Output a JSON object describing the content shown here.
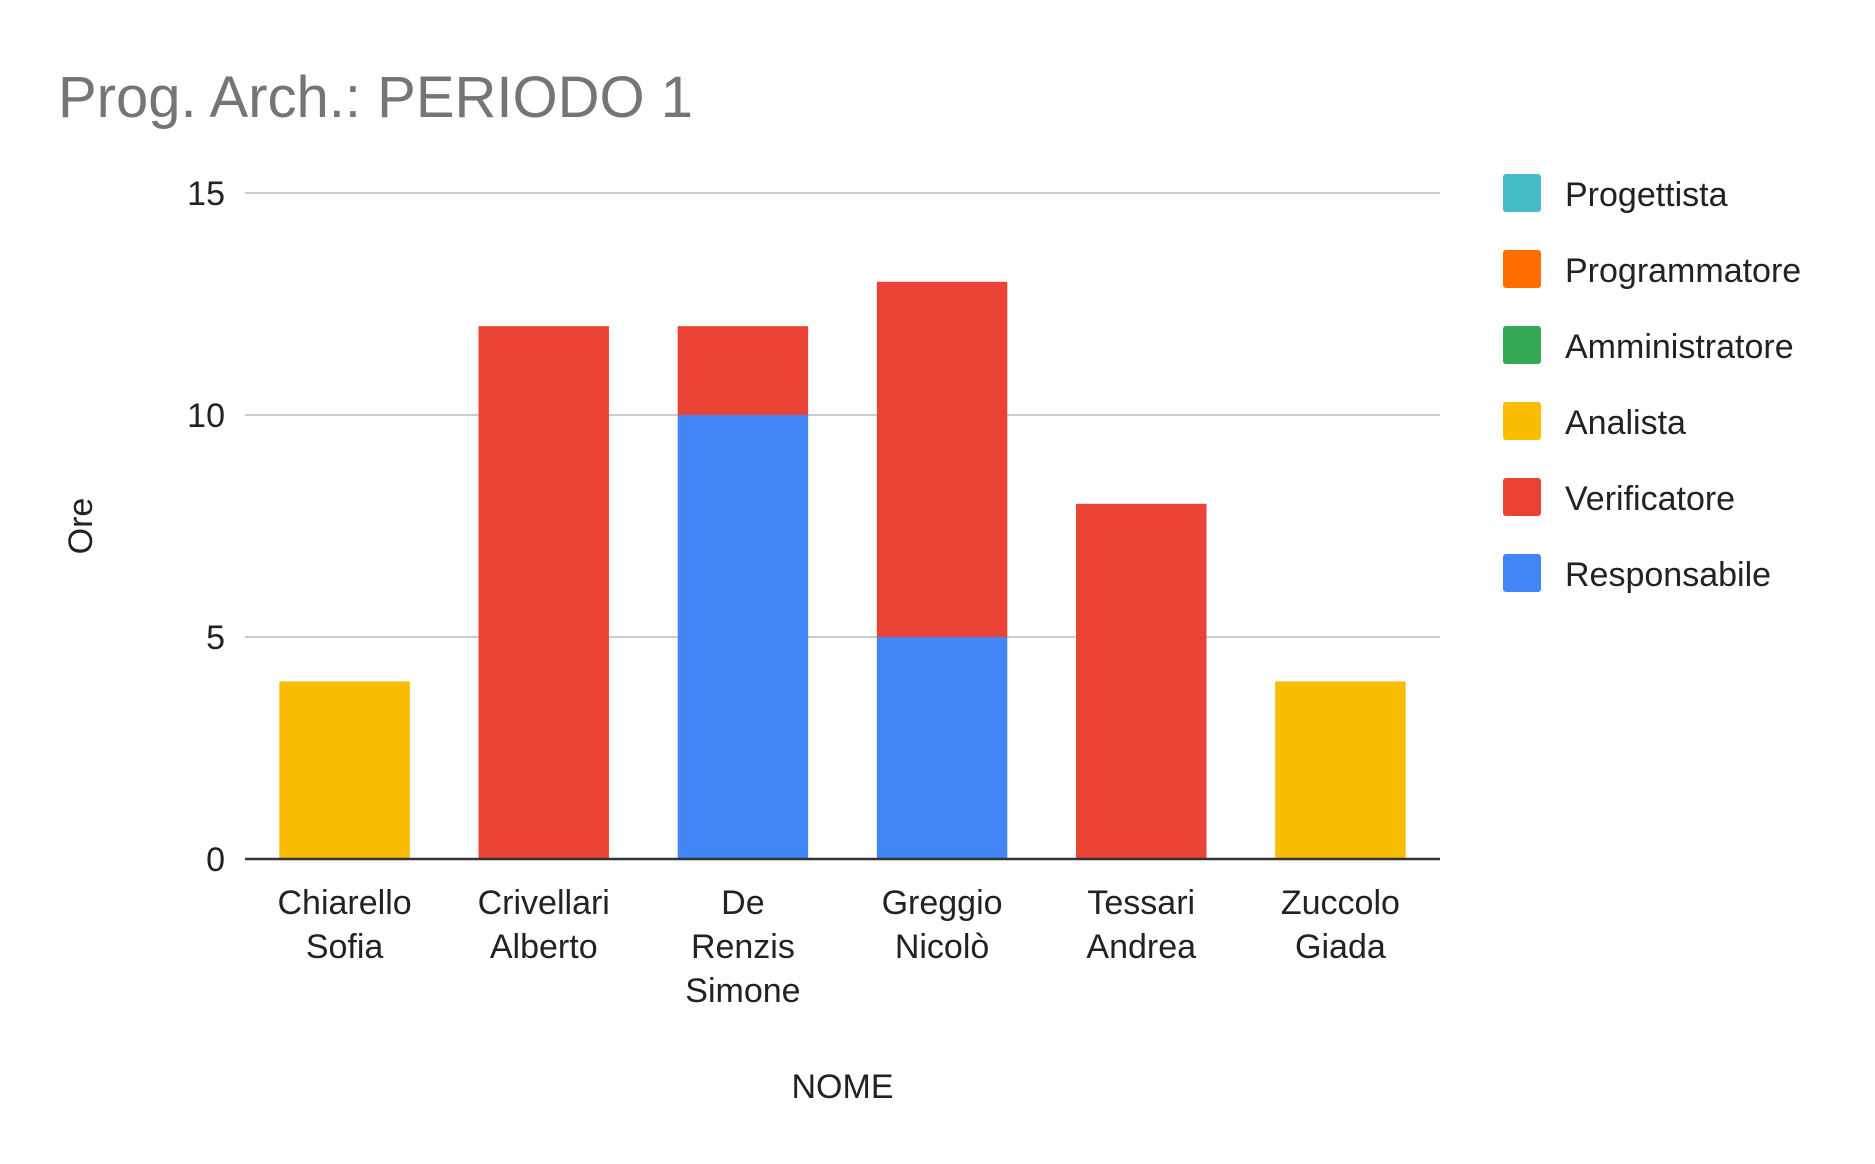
{
  "chart_data": {
    "type": "bar",
    "stacked": true,
    "title": "Prog. Arch.: PERIODO 1",
    "xlabel": "NOME",
    "ylabel": "Ore",
    "ylim": [
      0,
      15
    ],
    "yticks": [
      0,
      5,
      10,
      15
    ],
    "grid": true,
    "legend_position": "right",
    "categories": [
      [
        "Chiarello",
        "Sofia"
      ],
      [
        "Crivellari",
        "Alberto"
      ],
      [
        "De",
        "Renzis",
        "Simone"
      ],
      [
        "Greggio",
        "Nicolò"
      ],
      [
        "Tessari",
        "Andrea"
      ],
      [
        "Zuccolo",
        "Giada"
      ]
    ],
    "series": [
      {
        "name": "Progettista",
        "color": "#46BDC6",
        "values": [
          0,
          0,
          0,
          0,
          0,
          0
        ]
      },
      {
        "name": "Programmatore",
        "color": "#FF6D01",
        "values": [
          0,
          0,
          0,
          0,
          0,
          0
        ]
      },
      {
        "name": "Amministratore",
        "color": "#34A853",
        "values": [
          0,
          0,
          0,
          0,
          0,
          0
        ]
      },
      {
        "name": "Analista",
        "color": "#FBBC04",
        "values": [
          4,
          0,
          0,
          0,
          0,
          4
        ]
      },
      {
        "name": "Verificatore",
        "color": "#EA4335",
        "values": [
          0,
          12,
          2,
          8,
          8,
          0
        ]
      },
      {
        "name": "Responsabile",
        "color": "#4285F4",
        "values": [
          0,
          0,
          10,
          5,
          0,
          0
        ]
      }
    ]
  }
}
